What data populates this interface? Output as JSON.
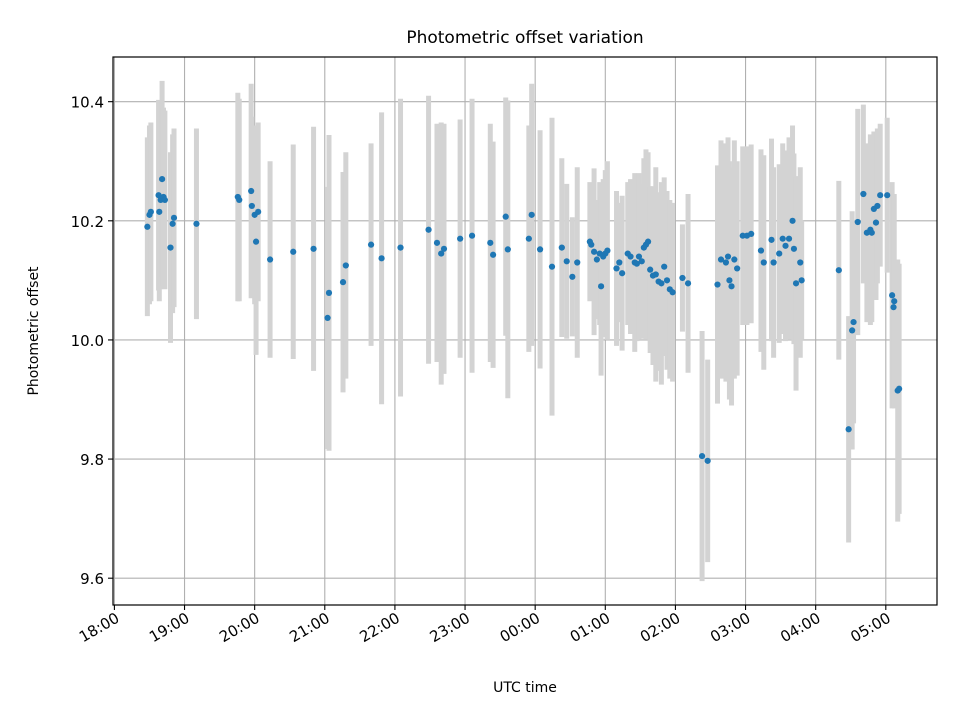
{
  "chart_data": {
    "type": "scatter",
    "title": "Photometric offset variation",
    "xlabel": "UTC time",
    "ylabel": "Photometric offset",
    "grid": true,
    "legend": "none",
    "x_ticks": [
      "18:00",
      "19:00",
      "20:00",
      "21:00",
      "22:00",
      "23:00",
      "00:00",
      "01:00",
      "02:00",
      "03:00",
      "04:00",
      "05:00"
    ],
    "y_ticks": [
      9.6,
      9.8,
      10.0,
      10.2,
      10.4
    ],
    "ylim": [
      9.555,
      10.475
    ],
    "xlim_hours_from_1800": [
      -0.02,
      11.73
    ],
    "point_color": "#1f77b4",
    "errorbar_color": "#d3d3d3",
    "series": [
      {
        "x_hours_from_1800": [
          0.47,
          0.5,
          0.52,
          0.63,
          0.64,
          0.66,
          0.68,
          0.7,
          0.72,
          0.8,
          0.83,
          0.85,
          1.17,
          1.76,
          1.78,
          1.95,
          1.96,
          2.0,
          2.02,
          2.05,
          2.22,
          2.55,
          2.84,
          3.04,
          3.06,
          3.26,
          3.3,
          3.66,
          3.81,
          4.08,
          4.48,
          4.6,
          4.66,
          4.7,
          4.93,
          5.1,
          5.36,
          5.4,
          5.58,
          5.61,
          5.91,
          5.95,
          6.07,
          6.24,
          6.38,
          6.45,
          6.53,
          6.6,
          6.78,
          6.8,
          6.84,
          6.88,
          6.92,
          6.94,
          6.97,
          7.0,
          7.03,
          7.16,
          7.2,
          7.24,
          7.32,
          7.36,
          7.42,
          7.45,
          7.48,
          7.52,
          7.55,
          7.58,
          7.61,
          7.64,
          7.68,
          7.72,
          7.76,
          7.8,
          7.84,
          7.88,
          7.92,
          7.96,
          8.1,
          8.18,
          8.38,
          8.46,
          8.6,
          8.65,
          8.72,
          8.75,
          8.77,
          8.8,
          8.84,
          8.88,
          8.96,
          9.02,
          9.08,
          9.22,
          9.26,
          9.37,
          9.4,
          9.48,
          9.53,
          9.57,
          9.62,
          9.67,
          9.69,
          9.72,
          9.78,
          9.8,
          10.33,
          10.47,
          10.52,
          10.54,
          10.6,
          10.68,
          10.73,
          10.78,
          10.8,
          10.83,
          10.86,
          10.88,
          10.92,
          11.02,
          11.09,
          11.11,
          11.12,
          11.17,
          11.19
        ],
        "y": [
          10.19,
          10.21,
          10.215,
          10.243,
          10.215,
          10.235,
          10.27,
          10.24,
          10.235,
          10.155,
          10.195,
          10.205,
          10.195,
          10.24,
          10.235,
          10.25,
          10.225,
          10.21,
          10.165,
          10.215,
          10.135,
          10.148,
          10.153,
          10.037,
          10.079,
          10.097,
          10.125,
          10.16,
          10.137,
          10.155,
          10.185,
          10.163,
          10.145,
          10.153,
          10.17,
          10.175,
          10.163,
          10.143,
          10.207,
          10.152,
          10.17,
          10.21,
          10.152,
          10.123,
          10.155,
          10.132,
          10.106,
          10.13,
          10.165,
          10.16,
          10.148,
          10.135,
          10.145,
          10.09,
          10.14,
          10.145,
          10.15,
          10.12,
          10.13,
          10.112,
          10.145,
          10.14,
          10.13,
          10.128,
          10.14,
          10.132,
          10.155,
          10.16,
          10.165,
          10.118,
          10.108,
          10.11,
          10.098,
          10.095,
          10.123,
          10.1,
          10.085,
          10.08,
          10.104,
          10.095,
          9.805,
          9.797,
          10.093,
          10.135,
          10.13,
          10.14,
          10.1,
          10.09,
          10.135,
          10.12,
          10.175,
          10.175,
          10.178,
          10.15,
          10.13,
          10.168,
          10.13,
          10.145,
          10.17,
          10.158,
          10.17,
          10.2,
          10.153,
          10.095,
          10.13,
          10.1,
          10.117,
          9.85,
          10.016,
          10.03,
          10.198,
          10.245,
          10.18,
          10.185,
          10.18,
          10.22,
          10.197,
          10.225,
          10.243,
          10.243,
          10.075,
          10.055,
          10.065,
          9.915,
          9.918
        ],
        "yerr": [
          0.15,
          0.15,
          0.15,
          0.16,
          0.15,
          0.15,
          0.165,
          0.15,
          0.15,
          0.16,
          0.15,
          0.15,
          0.16,
          0.175,
          0.17,
          0.18,
          0.15,
          0.15,
          0.19,
          0.15,
          0.165,
          0.18,
          0.205,
          0.22,
          0.265,
          0.185,
          0.19,
          0.17,
          0.245,
          0.25,
          0.225,
          0.2,
          0.22,
          0.21,
          0.2,
          0.23,
          0.2,
          0.19,
          0.2,
          0.25,
          0.19,
          0.22,
          0.2,
          0.25,
          0.15,
          0.13,
          0.1,
          0.16,
          0.1,
          0.08,
          0.14,
          0.1,
          0.12,
          0.15,
          0.13,
          0.14,
          0.15,
          0.13,
          0.1,
          0.13,
          0.12,
          0.13,
          0.15,
          0.13,
          0.14,
          0.13,
          0.15,
          0.16,
          0.15,
          0.14,
          0.15,
          0.18,
          0.15,
          0.17,
          0.15,
          0.15,
          0.15,
          0.15,
          0.09,
          0.15,
          0.21,
          0.17,
          0.2,
          0.2,
          0.2,
          0.2,
          0.2,
          0.2,
          0.2,
          0.18,
          0.15,
          0.15,
          0.15,
          0.17,
          0.18,
          0.17,
          0.16,
          0.15,
          0.16,
          0.16,
          0.17,
          0.16,
          0.16,
          0.18,
          0.16,
          0.1,
          0.15,
          0.19,
          0.2,
          0.17,
          0.19,
          0.15,
          0.15,
          0.16,
          0.15,
          0.13,
          0.13,
          0.13,
          0.12,
          0.13,
          0.19,
          0.16,
          0.18,
          0.22,
          0.21
        ]
      }
    ]
  }
}
